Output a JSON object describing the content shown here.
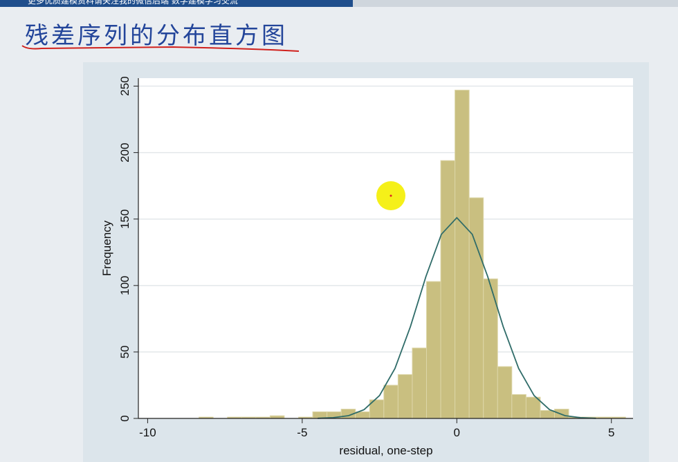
{
  "header": {
    "banner": "更多优质建模资料请关注我的微信后端 数学建模学习交流",
    "title": "残差序列的分布直方图"
  },
  "chart_data": {
    "type": "histogram",
    "x_label": "residual, one-step",
    "y_label": "Frequency",
    "bins": [
      -8.34,
      -7.88,
      -7.42,
      -6.96,
      -6.5,
      -6.04,
      -5.58,
      -5.12,
      -4.66,
      -4.2,
      -3.74,
      -3.28,
      -2.82,
      -2.36,
      -1.9,
      -1.44,
      -0.98,
      -0.52,
      -0.06,
      0.4,
      0.86,
      1.32,
      1.78,
      2.24,
      2.7,
      3.16,
      3.62,
      4.08,
      4.54,
      5.0,
      5.46
    ],
    "values": [
      1,
      0,
      1,
      1,
      1,
      2,
      0,
      1,
      5,
      5,
      7,
      5,
      14,
      25,
      33,
      53,
      103,
      194,
      247,
      166,
      105,
      39,
      18,
      16,
      6,
      7,
      1,
      1,
      1,
      1
    ],
    "color": "#c9bf80",
    "curve": {
      "type": "line",
      "color": "#2f6c69",
      "x": [
        -4.5,
        -4,
        -3.5,
        -3,
        -2.5,
        -2,
        -1.5,
        -1,
        -0.5,
        0,
        0.5,
        1,
        1.5,
        2,
        2.5,
        3,
        3.5,
        4,
        4.5
      ],
      "values": [
        0.1,
        0.6,
        2.1,
        6.6,
        17.2,
        37.6,
        69.1,
        106.7,
        138.5,
        151,
        138.5,
        106.7,
        69.1,
        37.6,
        17.2,
        6.6,
        2.1,
        0.6,
        0.1
      ]
    },
    "xlim": [
      -10.3,
      5.7
    ],
    "ylim": [
      0,
      256
    ],
    "xticks": [
      -10,
      -5,
      0,
      5
    ],
    "yticks": [
      0,
      50,
      100,
      150,
      200,
      250
    ],
    "grid": true
  }
}
